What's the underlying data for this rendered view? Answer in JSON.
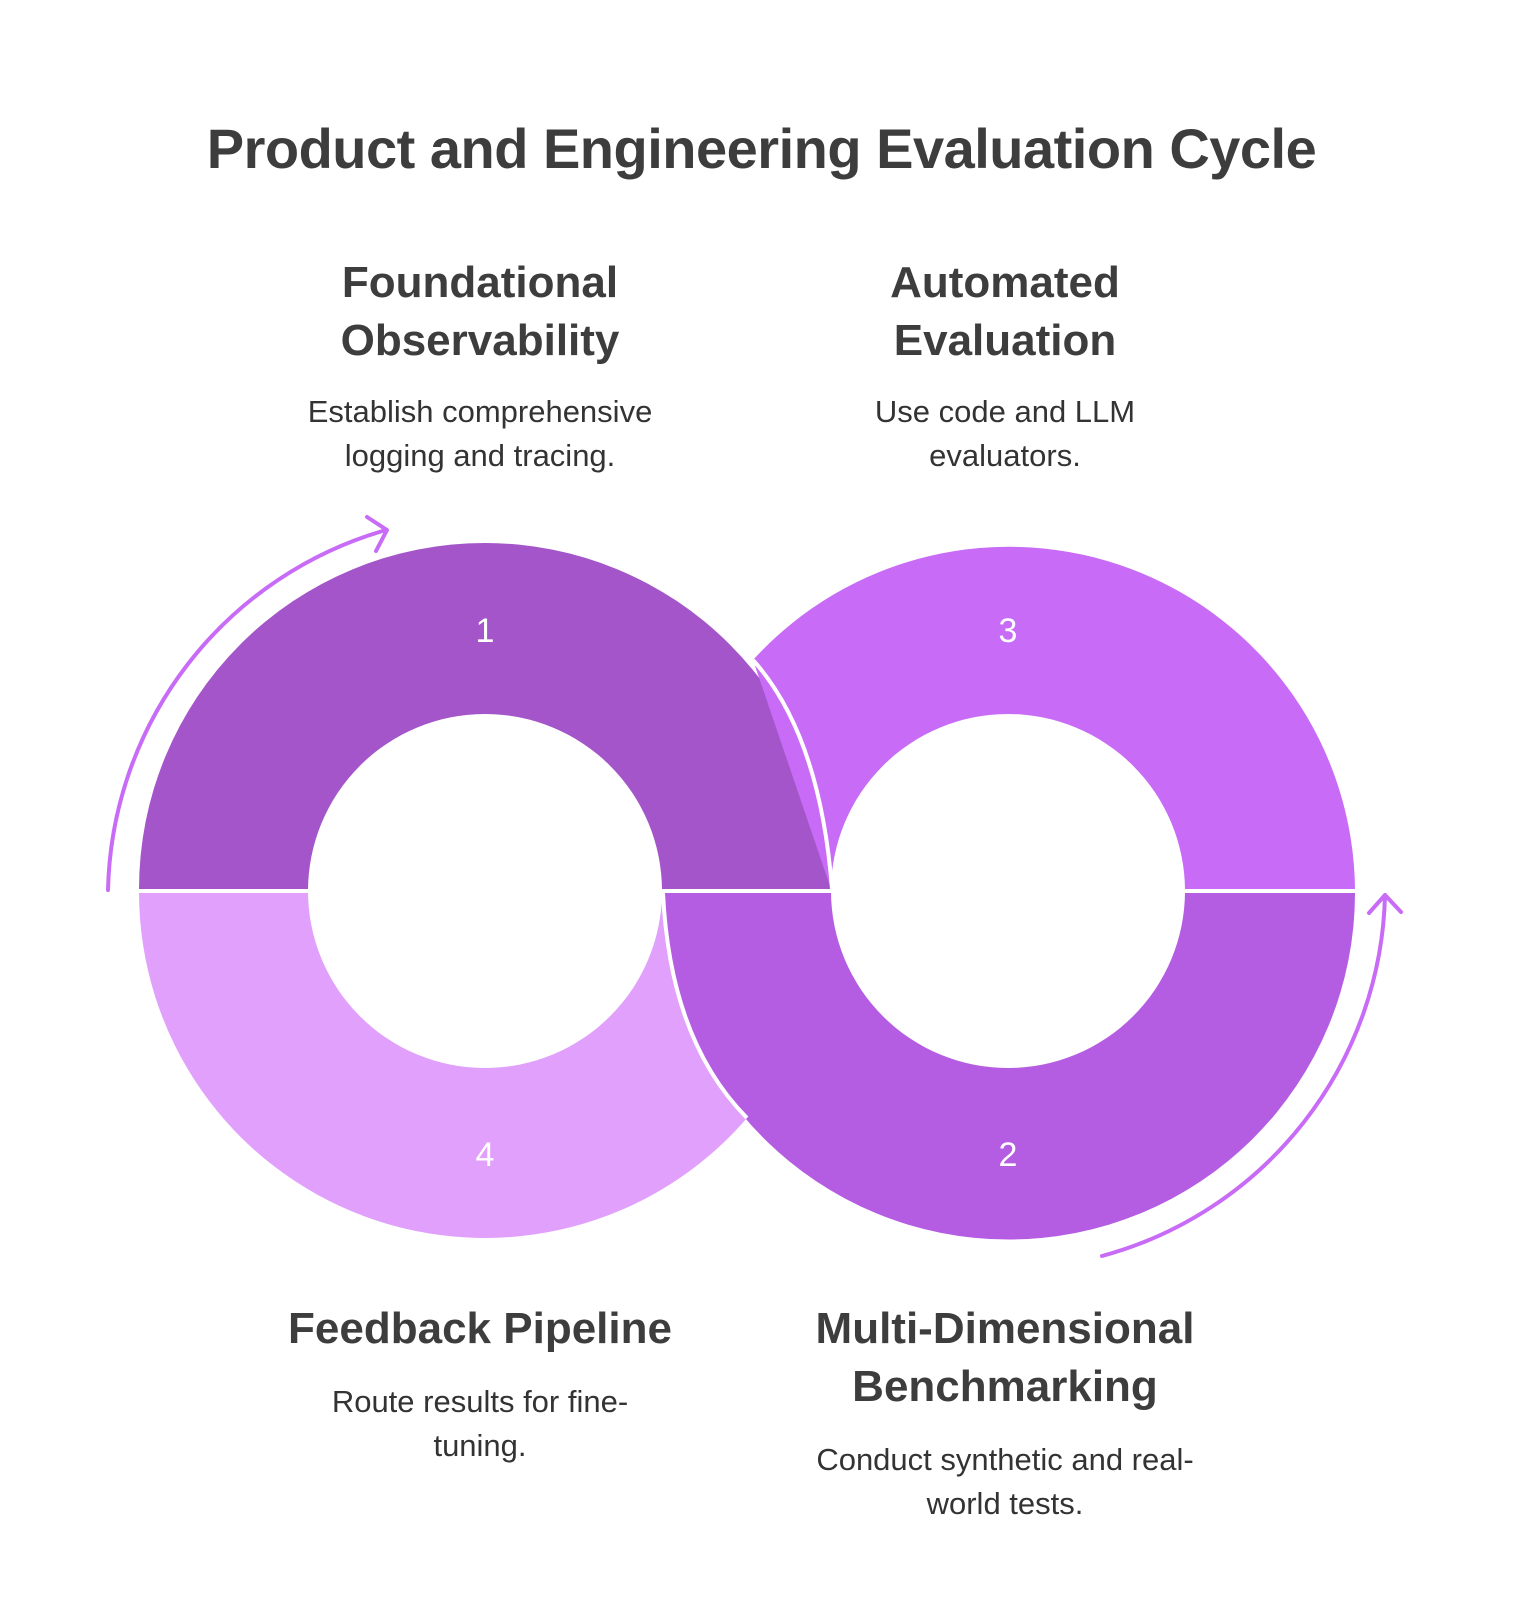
{
  "title": "Product and Engineering Evaluation Cycle",
  "colors": {
    "step1": "#a355c9",
    "step2": "#b45ce2",
    "step3": "#c86bf6",
    "step4": "#e0a0fb",
    "arrow": "#c86bf6",
    "text": "#3d3d3d"
  },
  "steps": [
    {
      "number": "1",
      "heading_lines": [
        "Foundational",
        "Observability"
      ],
      "description_lines": [
        "Establish comprehensive",
        "logging and tracing."
      ]
    },
    {
      "number": "2",
      "heading_lines": [
        "Multi-Dimensional",
        "Benchmarking"
      ],
      "description_lines": [
        "Conduct synthetic and real-",
        "world tests."
      ]
    },
    {
      "number": "3",
      "heading_lines": [
        "Automated",
        "Evaluation"
      ],
      "description_lines": [
        "Use code and LLM",
        "evaluators."
      ]
    },
    {
      "number": "4",
      "heading_lines": [
        "Feedback Pipeline"
      ],
      "description_lines": [
        "Route results for fine-",
        "tuning."
      ]
    }
  ]
}
